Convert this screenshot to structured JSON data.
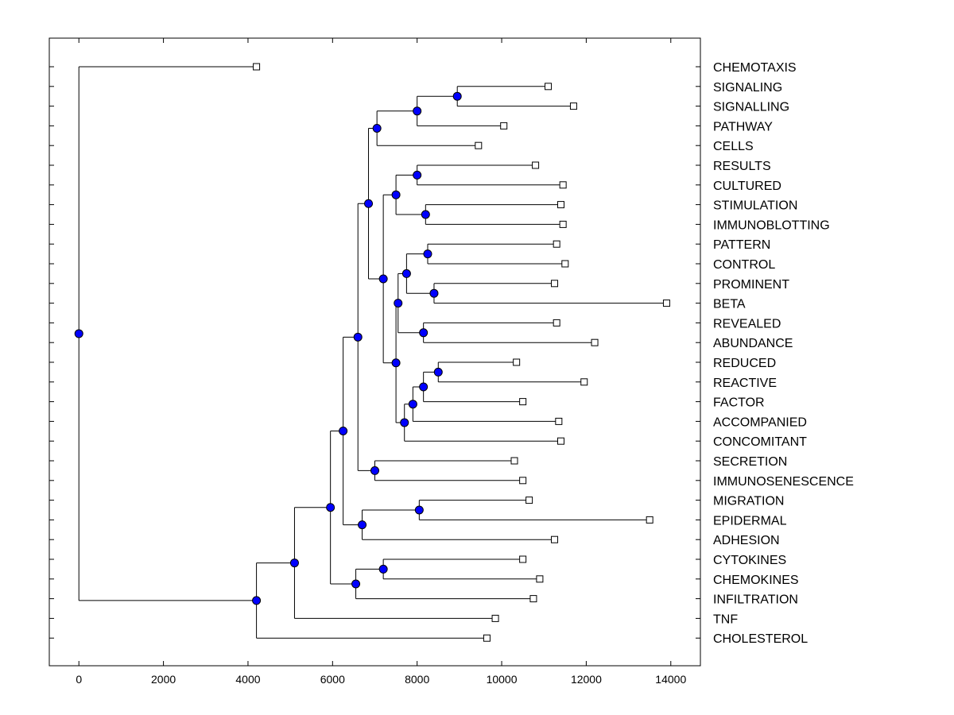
{
  "chart_data": {
    "type": "dendrogram",
    "xlim": [
      -700,
      14700
    ],
    "x_ticks": [
      0,
      2000,
      4000,
      6000,
      8000,
      10000,
      12000,
      14000
    ],
    "colors": {
      "node": "#0000ff",
      "line": "#000000",
      "leaf_fill": "#ffffff"
    },
    "leaves": [
      {
        "label": "CHEMOTAXIS",
        "x": 4200
      },
      {
        "label": "SIGNALING",
        "x": 11100
      },
      {
        "label": "SIGNALLING",
        "x": 11700
      },
      {
        "label": "PATHWAY",
        "x": 10050
      },
      {
        "label": "CELLS",
        "x": 9450
      },
      {
        "label": "RESULTS",
        "x": 10800
      },
      {
        "label": "CULTURED",
        "x": 11450
      },
      {
        "label": "STIMULATION",
        "x": 11400
      },
      {
        "label": "IMMUNOBLOTTING",
        "x": 11450
      },
      {
        "label": "PATTERN",
        "x": 11300
      },
      {
        "label": "CONTROL",
        "x": 11500
      },
      {
        "label": "PROMINENT",
        "x": 11250
      },
      {
        "label": "BETA",
        "x": 13900
      },
      {
        "label": "REVEALED",
        "x": 11300
      },
      {
        "label": "ABUNDANCE",
        "x": 12200
      },
      {
        "label": "REDUCED",
        "x": 10350
      },
      {
        "label": "REACTIVE",
        "x": 11950
      },
      {
        "label": "FACTOR",
        "x": 10500
      },
      {
        "label": "ACCOMPANIED",
        "x": 11350
      },
      {
        "label": "CONCOMITANT",
        "x": 11400
      },
      {
        "label": "SECRETION",
        "x": 10300
      },
      {
        "label": "IMMUNOSENESCENCE",
        "x": 10500
      },
      {
        "label": "MIGRATION",
        "x": 10650
      },
      {
        "label": "EPIDERMAL",
        "x": 13500
      },
      {
        "label": "ADHESION",
        "x": 11250
      },
      {
        "label": "CYTOKINES",
        "x": 10500
      },
      {
        "label": "CHEMOKINES",
        "x": 10900
      },
      {
        "label": "INFILTRATION",
        "x": 10750
      },
      {
        "label": "TNF",
        "x": 9850
      },
      {
        "label": "CHOLESTEROL",
        "x": 9650
      }
    ],
    "nodes": [
      {
        "id": "n1",
        "x": 8950,
        "children": [
          "L1",
          "L2"
        ]
      },
      {
        "id": "n2",
        "x": 8000,
        "children": [
          "n1",
          "L3"
        ]
      },
      {
        "id": "n3",
        "x": 7050,
        "children": [
          "n2",
          "L4"
        ]
      },
      {
        "id": "n4",
        "x": 8000,
        "children": [
          "L5",
          "L6"
        ]
      },
      {
        "id": "n5",
        "x": 8200,
        "children": [
          "L7",
          "L8"
        ]
      },
      {
        "id": "n6",
        "x": 7500,
        "children": [
          "n4",
          "n5"
        ]
      },
      {
        "id": "n7",
        "x": 8250,
        "children": [
          "L9",
          "L10"
        ]
      },
      {
        "id": "n8",
        "x": 8400,
        "children": [
          "L11",
          "L12"
        ]
      },
      {
        "id": "n9",
        "x": 7750,
        "children": [
          "n7",
          "n8"
        ]
      },
      {
        "id": "n10",
        "x": 8150,
        "children": [
          "L13",
          "L14"
        ]
      },
      {
        "id": "n11",
        "x": 7550,
        "children": [
          "n9",
          "n10"
        ]
      },
      {
        "id": "n12",
        "x": 8500,
        "children": [
          "L15",
          "L16"
        ]
      },
      {
        "id": "n13",
        "x": 8150,
        "children": [
          "n12",
          "L17"
        ]
      },
      {
        "id": "n14",
        "x": 7900,
        "children": [
          "n13",
          "L18"
        ]
      },
      {
        "id": "n15",
        "x": 7700,
        "children": [
          "n14",
          "L19"
        ]
      },
      {
        "id": "n16",
        "x": 7500,
        "children": [
          "n11",
          "n15"
        ]
      },
      {
        "id": "n17",
        "x": 7200,
        "children": [
          "n6",
          "n16"
        ]
      },
      {
        "id": "n18",
        "x": 6850,
        "children": [
          "n3",
          "n17"
        ]
      },
      {
        "id": "n19",
        "x": 7000,
        "children": [
          "L20",
          "L21"
        ]
      },
      {
        "id": "n20",
        "x": 6600,
        "children": [
          "n18",
          "n19"
        ]
      },
      {
        "id": "n21",
        "x": 8050,
        "children": [
          "L22",
          "L23"
        ]
      },
      {
        "id": "n22",
        "x": 6700,
        "children": [
          "n21",
          "L24"
        ]
      },
      {
        "id": "n23",
        "x": 6250,
        "children": [
          "n20",
          "n22"
        ]
      },
      {
        "id": "n24",
        "x": 7200,
        "children": [
          "L25",
          "L26"
        ]
      },
      {
        "id": "n25",
        "x": 6550,
        "children": [
          "n24",
          "L27"
        ]
      },
      {
        "id": "n26",
        "x": 5950,
        "children": [
          "n23",
          "n25"
        ]
      },
      {
        "id": "n27",
        "x": 5100,
        "children": [
          "n26",
          "L28"
        ]
      },
      {
        "id": "n28",
        "x": 4200,
        "children": [
          "n27",
          "L29"
        ]
      },
      {
        "id": "n29",
        "x": 0,
        "children": [
          "L0",
          "n28"
        ]
      }
    ]
  }
}
